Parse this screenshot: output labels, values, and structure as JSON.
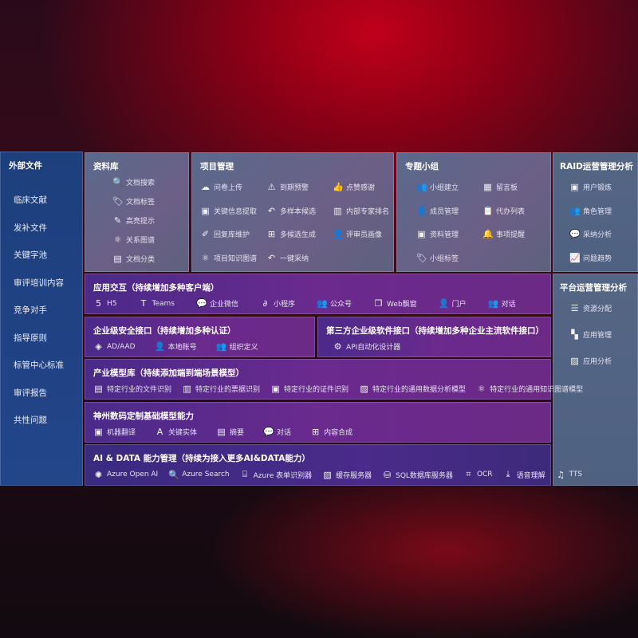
{
  "sidebar": {
    "title": "外部文件",
    "items": [
      "临床文献",
      "发补文件",
      "关键字池",
      "审评培训内容",
      "竞争对手",
      "指导原则",
      "标管中心标准",
      "审评报告",
      "共性问题"
    ]
  },
  "library": {
    "title": "资料库",
    "items": [
      {
        "icon": "document-search-icon",
        "glyph": "🔍",
        "label": "文档搜索"
      },
      {
        "icon": "tag-icon",
        "glyph": "🏷",
        "label": "文档标签"
      },
      {
        "icon": "pen-icon",
        "glyph": "✎",
        "label": "高亮提示"
      },
      {
        "icon": "graph-icon",
        "glyph": "⚛",
        "label": "关系图谱"
      },
      {
        "icon": "document-classify-icon",
        "glyph": "▤",
        "label": "文档分类"
      }
    ]
  },
  "project": {
    "title": "项目管理",
    "items": [
      {
        "icon": "cloud-upload-icon",
        "glyph": "☁",
        "label": "问卷上传"
      },
      {
        "icon": "alarm-icon",
        "glyph": "⚠",
        "label": "到期预警"
      },
      {
        "icon": "thumbs-up-icon",
        "glyph": "👍",
        "label": "点赞感谢"
      },
      {
        "icon": "extract-icon",
        "glyph": "▣",
        "label": "关键信息提取"
      },
      {
        "icon": "reply-icon",
        "glyph": "↶",
        "label": "多样本候选"
      },
      {
        "icon": "rank-icon",
        "glyph": "▥",
        "label": "内部专家排名"
      },
      {
        "icon": "edit-icon",
        "glyph": "✐",
        "label": "回复库维护"
      },
      {
        "icon": "puzzle-icon",
        "glyph": "⊞",
        "label": "多候选生成"
      },
      {
        "icon": "user-icon",
        "glyph": "👤",
        "label": "评审员画像"
      },
      {
        "icon": "graph-icon",
        "glyph": "⚛",
        "label": "项目知识图谱"
      },
      {
        "icon": "reply-icon",
        "glyph": "↶",
        "label": "一键采纳"
      }
    ]
  },
  "group": {
    "title": "专题小组",
    "items": [
      {
        "icon": "users-icon",
        "glyph": "👥",
        "label": "小组建立"
      },
      {
        "icon": "bbs-icon",
        "glyph": "▦",
        "label": "留言板"
      },
      {
        "icon": "user-add-icon",
        "glyph": "👤",
        "label": "成员管理"
      },
      {
        "icon": "clipboard-icon",
        "glyph": "📋",
        "label": "代办列表"
      },
      {
        "icon": "folder-icon",
        "glyph": "▣",
        "label": "资料管理"
      },
      {
        "icon": "bell-icon",
        "glyph": "🔔",
        "label": "事项提醒"
      },
      {
        "icon": "tag-icon",
        "glyph": "🏷",
        "label": "小组标签"
      }
    ]
  },
  "raid": {
    "title": "RAID运营管理分析",
    "items": [
      {
        "icon": "id-card-icon",
        "glyph": "▣",
        "label": "用户锻炼"
      },
      {
        "icon": "users-icon",
        "glyph": "👥",
        "label": "角色管理"
      },
      {
        "icon": "qa-icon",
        "glyph": "💬",
        "label": "采纳分析"
      },
      {
        "icon": "trend-icon",
        "glyph": "📈",
        "label": "问题趋势"
      }
    ]
  },
  "platform": {
    "title": "平台运营管理分析",
    "items": [
      {
        "icon": "checklist-icon",
        "glyph": "☰",
        "label": "资源分配"
      },
      {
        "icon": "apps-icon",
        "glyph": "▚",
        "label": "应用管理"
      },
      {
        "icon": "chart-icon",
        "glyph": "▨",
        "label": "应用分析"
      }
    ]
  },
  "interaction": {
    "title": "应用交互（持续增加多种客户端）",
    "items": [
      {
        "icon": "html5-icon",
        "glyph": "5",
        "label": "H5"
      },
      {
        "icon": "teams-icon",
        "glyph": "T",
        "label": "Teams"
      },
      {
        "icon": "wechat-work-icon",
        "glyph": "💬",
        "label": "企业微信"
      },
      {
        "icon": "mini-program-icon",
        "glyph": "∂",
        "label": "小程序"
      },
      {
        "icon": "official-account-icon",
        "glyph": "👥",
        "label": "公众号"
      },
      {
        "icon": "window-icon",
        "glyph": "❐",
        "label": "Web飘窗"
      },
      {
        "icon": "portal-icon",
        "glyph": "👤",
        "label": "门户"
      },
      {
        "icon": "chat-icon",
        "glyph": "👥",
        "label": "对话"
      }
    ]
  },
  "security": {
    "title": "企业级安全接口（持续增加多种认证）",
    "items": [
      {
        "icon": "ad-icon",
        "glyph": "◈",
        "label": "AD/AAD"
      },
      {
        "icon": "local-account-icon",
        "glyph": "👤",
        "label": "本地账号"
      },
      {
        "icon": "org-icon",
        "glyph": "👥",
        "label": "组织定义"
      }
    ]
  },
  "thirdparty": {
    "title": "第三方企业级软件接口（持续增加多种企业主流软件接口）",
    "items": [
      {
        "icon": "api-gear-icon",
        "glyph": "⚙",
        "label": "API自动化设计器"
      }
    ]
  },
  "industry": {
    "title": "产业模型库（持续添加端到端场景模型）",
    "items": [
      {
        "icon": "file-icon",
        "glyph": "▤",
        "label": "特定行业的文件识别"
      },
      {
        "icon": "receipt-icon",
        "glyph": "▥",
        "label": "特定行业的票据识别"
      },
      {
        "icon": "id-card-icon",
        "glyph": "▣",
        "label": "特定行业的证件识别"
      },
      {
        "icon": "data-analysis-icon",
        "glyph": "▨",
        "label": "特定行业的通用数据分析模型"
      },
      {
        "icon": "graph-icon",
        "glyph": "⚛",
        "label": "特定行业的通用知识图谱模型"
      }
    ]
  },
  "custom": {
    "title": "神州数码定制基础模型能力",
    "items": [
      {
        "icon": "translate-icon",
        "glyph": "▣",
        "label": "机器翻译"
      },
      {
        "icon": "entity-icon",
        "glyph": "A",
        "label": "关键实体"
      },
      {
        "icon": "summary-icon",
        "glyph": "▤",
        "label": "摘要"
      },
      {
        "icon": "chat-icon",
        "glyph": "💬",
        "label": "对话"
      },
      {
        "icon": "compose-icon",
        "glyph": "⊞",
        "label": "内容合成"
      }
    ]
  },
  "aidata": {
    "title": "AI & DATA 能力管理（持续为接入更多AI&DATA能力）",
    "items": [
      {
        "icon": "openai-icon",
        "glyph": "✺",
        "label": "Azure Open AI"
      },
      {
        "icon": "search-icon",
        "glyph": "🔍",
        "label": "Azure Search"
      },
      {
        "icon": "form-recognizer-icon",
        "glyph": "⌸",
        "label": "Azure 表单识别器"
      },
      {
        "icon": "cache-server-icon",
        "glyph": "▧",
        "label": "缓存服务器"
      },
      {
        "icon": "sql-icon",
        "glyph": "⛁",
        "label": "SQL数据库服务器"
      },
      {
        "icon": "ocr-icon",
        "glyph": "⌗",
        "label": "OCR"
      },
      {
        "icon": "speech-icon",
        "glyph": "⤓",
        "label": "语音理解"
      },
      {
        "icon": "tts-icon",
        "glyph": "♫",
        "label": "TTS"
      }
    ]
  }
}
